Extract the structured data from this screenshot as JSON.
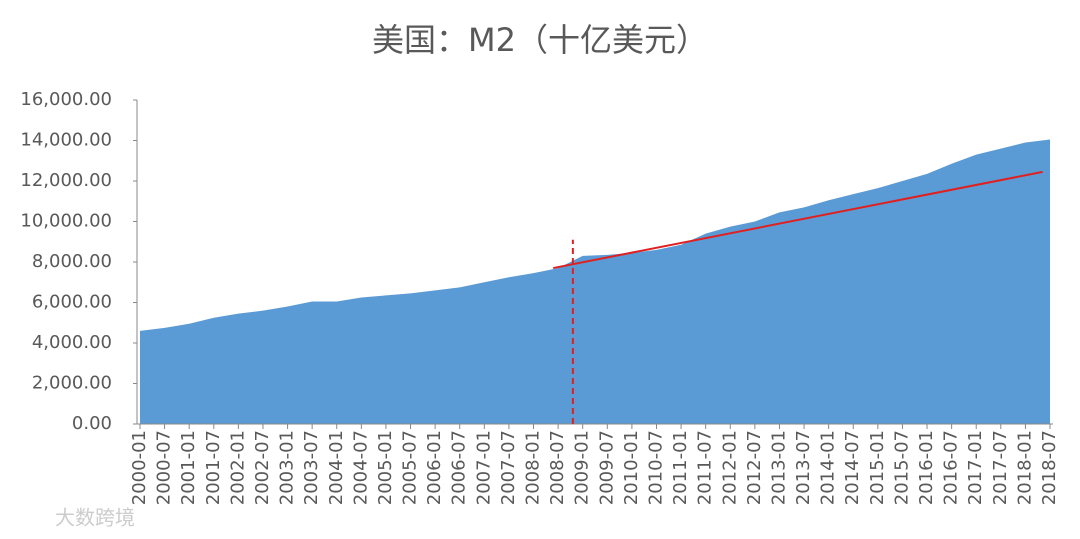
{
  "chart_data": {
    "type": "area",
    "title": "美国：M2（十亿美元）",
    "categories": [
      "2000-01",
      "2000-07",
      "2001-01",
      "2001-07",
      "2002-01",
      "2002-07",
      "2003-01",
      "2003-07",
      "2004-01",
      "2004-07",
      "2005-01",
      "2005-07",
      "2006-01",
      "2006-07",
      "2007-01",
      "2007-07",
      "2008-01",
      "2008-07",
      "2009-01",
      "2009-07",
      "2010-01",
      "2010-07",
      "2011-01",
      "2011-07",
      "2012-01",
      "2012-07",
      "2013-01",
      "2013-07",
      "2014-01",
      "2014-07",
      "2015-01",
      "2015-07",
      "2016-01",
      "2016-07",
      "2017-01",
      "2017-07",
      "2018-01",
      "2018-07"
    ],
    "values": [
      4600,
      4750,
      4950,
      5250,
      5450,
      5600,
      5800,
      6050,
      6050,
      6250,
      6350,
      6450,
      6600,
      6750,
      7000,
      7250,
      7450,
      7700,
      8300,
      8350,
      8450,
      8600,
      8850,
      9400,
      9750,
      10000,
      10450,
      10700,
      11050,
      11350,
      11650,
      12000,
      12350,
      12850,
      13300,
      13600,
      13900,
      14050
    ],
    "color": "#5b9bd5",
    "ylim": [
      0,
      16000
    ],
    "yticks": [
      {
        "value": 0,
        "label": "0.00"
      },
      {
        "value": 2000,
        "label": "2,000.00"
      },
      {
        "value": 4000,
        "label": "4,000.00"
      },
      {
        "value": 6000,
        "label": "6,000.00"
      },
      {
        "value": 8000,
        "label": "8,000.00"
      },
      {
        "value": 10000,
        "label": "10,000.00"
      },
      {
        "value": 12000,
        "label": "12,000.00"
      },
      {
        "value": 14000,
        "label": "14,000.00"
      },
      {
        "value": 16000,
        "label": "16,000.00"
      }
    ],
    "trend": {
      "x_index": [
        16.8,
        36.7
      ],
      "values": [
        7700,
        12450
      ],
      "color": "#e02020"
    },
    "vline": {
      "x_index": 17.6,
      "values": [
        0,
        9100
      ],
      "color": "#e02020"
    },
    "watermark": "大数跨境"
  }
}
